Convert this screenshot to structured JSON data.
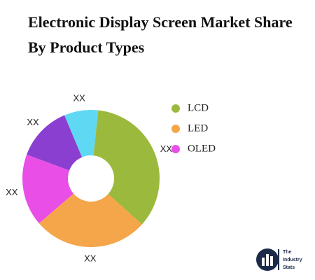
{
  "chart_data": {
    "type": "donut",
    "title": "Electronic Display Screen Market Share By Product Types",
    "categories": [
      "LCD",
      "LED",
      null,
      null,
      null
    ],
    "values": [
      35,
      27,
      17,
      13,
      8
    ],
    "value_labels": [
      "XX",
      "XX",
      "XX",
      "XX",
      "XX"
    ],
    "colors": [
      "#9bba3d",
      "#f5a54a",
      "#e94fe6",
      "#8a3fd1",
      "#5fd8f4"
    ],
    "legend": [
      {
        "name": "LCD",
        "color": "#9bba3d"
      },
      {
        "name": "LED",
        "color": "#f5a54a"
      },
      {
        "name": "OLED",
        "color": "#e94fe6"
      }
    ],
    "legend_position": "right"
  },
  "logo": {
    "lines": [
      "The",
      "Industry",
      "Stats"
    ]
  }
}
